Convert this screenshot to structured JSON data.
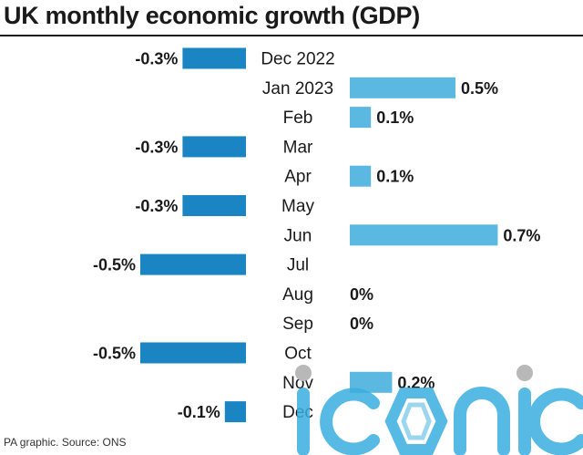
{
  "title": "UK monthly economic growth (GDP)",
  "source": "PA graphic. Source: ONS",
  "watermark": "iconic",
  "colors": {
    "negative": "#1a85c2",
    "positive": "#5bb8e0",
    "text": "#1a1a1a",
    "watermark": "#3aaee0"
  },
  "chart_data": {
    "type": "bar",
    "orientation": "horizontal",
    "title": "UK monthly economic growth (GDP)",
    "xlabel": "",
    "ylabel": "",
    "categories": [
      "Dec 2022",
      "Jan 2023",
      "Feb",
      "Mar",
      "Apr",
      "May",
      "Jun",
      "Jul",
      "Aug",
      "Sep",
      "Oct",
      "Nov",
      "Dec"
    ],
    "values": [
      -0.3,
      0.5,
      0.1,
      -0.3,
      0.1,
      -0.3,
      0.7,
      -0.5,
      0,
      0,
      -0.5,
      0.2,
      -0.1
    ],
    "labels": [
      "-0.3%",
      "0.5%",
      "0.1%",
      "-0.3%",
      "0.1%",
      "-0.3%",
      "0.7%",
      "-0.5%",
      "0%",
      "0%",
      "-0.5%",
      "0.2%",
      "-0.1%"
    ],
    "unit": "%",
    "xlim": [
      -0.5,
      0.7
    ],
    "grid": false,
    "legend": "none"
  }
}
